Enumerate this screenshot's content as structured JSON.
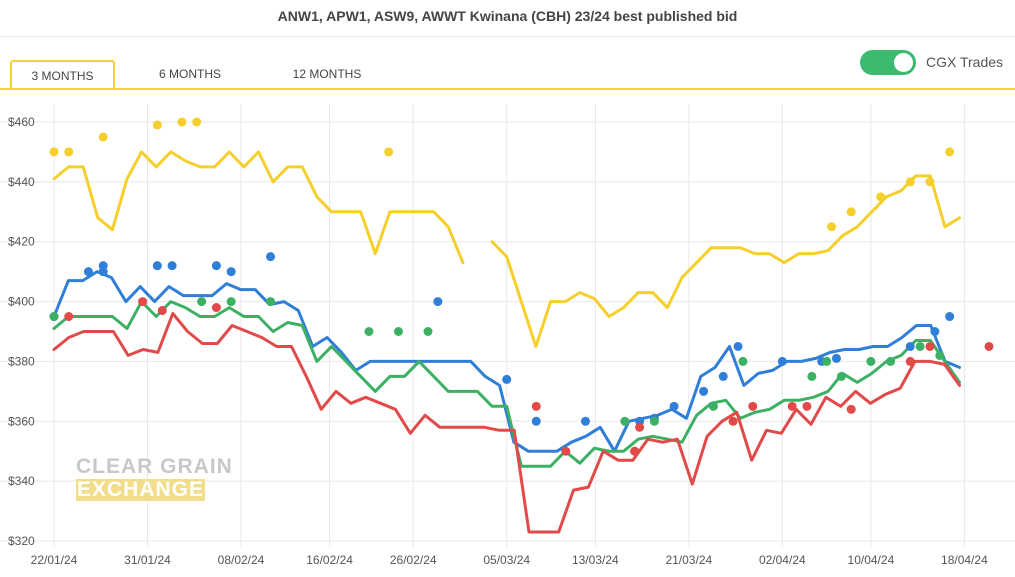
{
  "title": "ANW1, APW1, ASW9, AWWT Kwinana (CBH) 23/24 best published bid",
  "tabs": [
    {
      "label": "3 MONTHS",
      "active": true
    },
    {
      "label": "6 MONTHS",
      "active": false
    },
    {
      "label": "12 MONTHS",
      "active": false
    }
  ],
  "toggle": {
    "label": "CGX Trades",
    "on": true,
    "color": "#3cba6f"
  },
  "watermark": {
    "line1": "CLEAR GRAIN",
    "line2": "EXCHANGE"
  },
  "chart_data": {
    "type": "line",
    "ylim": [
      320,
      470
    ],
    "yticks": [
      320,
      340,
      360,
      380,
      400,
      420,
      440,
      460
    ],
    "ytick_labels": [
      "$320",
      "$340",
      "$360",
      "$380",
      "$400",
      "$420",
      "$440",
      "$460"
    ],
    "xlim": [
      0,
      87
    ],
    "xticks": [
      0,
      9,
      18,
      27,
      35,
      44,
      53,
      62,
      71,
      80,
      88
    ],
    "xtick_labels": [
      "22/01/24",
      "31/01/24",
      "08/02/24",
      "16/02/24",
      "26/02/24",
      "05/03/24",
      "13/03/24",
      "21/03/24",
      "02/04/24",
      "10/04/24",
      "18/04/24"
    ],
    "grid": true,
    "series": [
      {
        "color": "#f5cf2c",
        "values": [
          441,
          445,
          445,
          428,
          424,
          441,
          450,
          445,
          450,
          447,
          445,
          445,
          450,
          445,
          450,
          440,
          445,
          445,
          435,
          430,
          430,
          430,
          416,
          430,
          430,
          430,
          430,
          425,
          413,
          null,
          420,
          415,
          400,
          385,
          400,
          400,
          403,
          401,
          395,
          398,
          403,
          403,
          398,
          408,
          413,
          418,
          418,
          418,
          416,
          416,
          413,
          416,
          416,
          417,
          422,
          425,
          430,
          435,
          437,
          442,
          442,
          425,
          428
        ],
        "trades": [
          [
            0,
            450
          ],
          [
            1.5,
            450
          ],
          [
            5,
            455
          ],
          [
            10.5,
            459
          ],
          [
            13,
            460
          ],
          [
            14.5,
            460
          ],
          [
            34,
            450
          ],
          [
            79,
            425
          ],
          [
            81,
            430
          ],
          [
            84,
            435
          ],
          [
            87,
            440
          ],
          [
            89,
            440
          ],
          [
            91,
            450
          ]
        ],
        "trade_dates": []
      },
      {
        "color": "#2f7ed8",
        "values": [
          395,
          407,
          407,
          410,
          408,
          400,
          405,
          400,
          405,
          402,
          402,
          402,
          406,
          404,
          404,
          399,
          400,
          397,
          385,
          388,
          383,
          377,
          380,
          380,
          380,
          380,
          380,
          380,
          380,
          380,
          375,
          372,
          353,
          350,
          350,
          350,
          353,
          355,
          358,
          350,
          360,
          361,
          362,
          364,
          361,
          375,
          378,
          385,
          372,
          376,
          377,
          380,
          380,
          381,
          383,
          384,
          384,
          385,
          385,
          388,
          392,
          392,
          380,
          378
        ],
        "trades": [
          [
            0,
            395
          ],
          [
            3.5,
            410
          ],
          [
            5,
            412
          ],
          [
            5,
            410
          ],
          [
            10.5,
            412
          ],
          [
            12,
            412
          ],
          [
            16.5,
            412
          ],
          [
            18,
            410
          ],
          [
            22,
            415
          ],
          [
            39,
            400
          ],
          [
            46,
            374
          ],
          [
            49,
            360
          ],
          [
            54,
            360
          ],
          [
            59.5,
            360
          ],
          [
            61,
            361
          ],
          [
            63,
            365
          ],
          [
            66,
            370
          ],
          [
            68,
            375
          ],
          [
            69.5,
            385
          ],
          [
            74,
            380
          ],
          [
            78,
            380
          ],
          [
            79.5,
            381
          ],
          [
            87,
            385
          ],
          [
            89.5,
            390
          ],
          [
            91,
            395
          ]
        ],
        "trade_dates": []
      },
      {
        "color": "#3cb063",
        "values": [
          391,
          395,
          395,
          395,
          395,
          391,
          400,
          395,
          400,
          398,
          395,
          395,
          398,
          395,
          395,
          390,
          393,
          392,
          380,
          385,
          380,
          375,
          370,
          375,
          375,
          380,
          375,
          370,
          370,
          370,
          365,
          365,
          345,
          345,
          345,
          350,
          346,
          351,
          350,
          350,
          354,
          355,
          354,
          353,
          362,
          366,
          367,
          361,
          363,
          364,
          367,
          367,
          368,
          370,
          376,
          373,
          376,
          380,
          382,
          387,
          387,
          380,
          373
        ],
        "trades": [
          [
            0,
            395
          ],
          [
            15,
            400
          ],
          [
            18,
            400
          ],
          [
            22,
            400
          ],
          [
            32,
            390
          ],
          [
            35,
            390
          ],
          [
            38,
            390
          ],
          [
            61,
            360
          ],
          [
            58,
            360
          ],
          [
            59,
            350
          ],
          [
            67,
            365
          ],
          [
            70,
            380
          ],
          [
            77,
            375
          ],
          [
            78.5,
            380
          ],
          [
            80,
            375
          ],
          [
            83,
            380
          ],
          [
            85,
            380
          ],
          [
            88,
            385
          ],
          [
            90,
            382
          ]
        ],
        "trade_dates": []
      },
      {
        "color": "#e24a4a",
        "values": [
          384,
          388,
          390,
          390,
          390,
          382,
          384,
          383,
          396,
          390,
          386,
          386,
          392,
          390,
          388,
          385,
          385,
          375,
          364,
          370,
          366,
          368,
          366,
          364,
          356,
          362,
          358,
          358,
          358,
          358,
          357,
          357,
          323,
          323,
          323,
          337,
          338,
          350,
          347,
          347,
          354,
          353,
          354,
          339,
          355,
          360,
          363,
          347,
          357,
          356,
          364,
          359,
          368,
          365,
          370,
          366,
          369,
          371,
          380,
          380,
          379,
          372
        ],
        "trades": [
          [
            1.5,
            395
          ],
          [
            9,
            400
          ],
          [
            11,
            397
          ],
          [
            16.5,
            398
          ],
          [
            49,
            365
          ],
          [
            52,
            350
          ],
          [
            59,
            350
          ],
          [
            59.5,
            358
          ],
          [
            69,
            360
          ],
          [
            71,
            365
          ],
          [
            75,
            365
          ],
          [
            76.5,
            365
          ],
          [
            81,
            364
          ],
          [
            87,
            380
          ],
          [
            89,
            385
          ],
          [
            95,
            385
          ]
        ],
        "trade_dates": []
      }
    ]
  }
}
